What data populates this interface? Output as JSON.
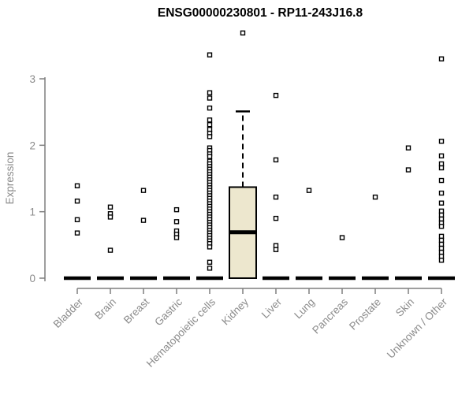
{
  "title": "ENSG00000230801 - RP11-243J16.8",
  "chart_data": {
    "type": "boxplot",
    "title": "ENSG00000230801 - RP11-243J16.8",
    "ylabel": "Expression",
    "xlabel": "",
    "ylim": [
      0,
      3.8
    ],
    "yticks": [
      0,
      1,
      2,
      3
    ],
    "grid": false,
    "legend": null,
    "categories": [
      "Bladder",
      "Brain",
      "Breast",
      "Gastric",
      "Hematopoietic cells",
      "Kidney",
      "Liver",
      "Lung",
      "Pancreas",
      "Prostate",
      "Skin",
      "Unknown / Other"
    ],
    "series": [
      {
        "category": "Bladder",
        "box": {
          "q1": 0,
          "median": 0,
          "q3": 0
        },
        "points": [
          1.39,
          1.16,
          0.88,
          0.68
        ]
      },
      {
        "category": "Brain",
        "box": {
          "q1": 0,
          "median": 0,
          "q3": 0
        },
        "points": [
          1.07,
          0.97,
          0.92,
          0.42
        ]
      },
      {
        "category": "Breast",
        "box": {
          "q1": 0,
          "median": 0,
          "q3": 0
        },
        "points": [
          1.32,
          0.87
        ]
      },
      {
        "category": "Gastric",
        "box": {
          "q1": 0,
          "median": 0,
          "q3": 0
        },
        "points": [
          1.03,
          0.85,
          0.71,
          0.66,
          0.61
        ]
      },
      {
        "category": "Hematopoietic cells",
        "box": {
          "q1": 0,
          "median": 0,
          "q3": 0
        },
        "points": [
          3.36,
          2.79,
          2.71,
          2.56,
          2.38,
          2.31,
          2.24,
          2.18,
          2.13,
          1.96,
          1.92,
          1.87,
          1.83,
          1.76,
          1.72,
          1.68,
          1.64,
          1.6,
          1.56,
          1.52,
          1.48,
          1.44,
          1.4,
          1.36,
          1.32,
          1.28,
          1.24,
          1.2,
          1.16,
          1.12,
          1.08,
          1.04,
          1.0,
          0.96,
          0.92,
          0.88,
          0.84,
          0.8,
          0.76,
          0.72,
          0.68,
          0.64,
          0.6,
          0.56,
          0.52,
          0.47,
          0.24,
          0.15
        ]
      },
      {
        "category": "Kidney",
        "box": {
          "q1": 0,
          "median": 0.69,
          "q3": 1.37,
          "whisker_high": 2.51
        },
        "points": [
          3.69
        ]
      },
      {
        "category": "Liver",
        "box": {
          "q1": 0,
          "median": 0,
          "q3": 0
        },
        "points": [
          2.75,
          1.78,
          1.22,
          0.9,
          0.49,
          0.43
        ]
      },
      {
        "category": "Lung",
        "box": {
          "q1": 0,
          "median": 0,
          "q3": 0
        },
        "points": [
          1.32
        ]
      },
      {
        "category": "Pancreas",
        "box": {
          "q1": 0,
          "median": 0,
          "q3": 0
        },
        "points": [
          0.61
        ]
      },
      {
        "category": "Prostate",
        "box": {
          "q1": 0,
          "median": 0,
          "q3": 0
        },
        "points": [
          1.22
        ]
      },
      {
        "category": "Skin",
        "box": {
          "q1": 0,
          "median": 0,
          "q3": 0
        },
        "points": [
          1.96,
          1.63
        ]
      },
      {
        "category": "Unknown / Other",
        "box": {
          "q1": 0,
          "median": 0,
          "q3": 0
        },
        "points": [
          3.3,
          2.06,
          1.84,
          1.72,
          1.66,
          1.47,
          1.28,
          1.13,
          1.01,
          0.95,
          0.89,
          0.83,
          0.78,
          0.63,
          0.57,
          0.51,
          0.45,
          0.39,
          0.33,
          0.27
        ]
      }
    ],
    "colors": {
      "box_fill": "#EDE7CE",
      "box_border": "#000000",
      "point": "#000000",
      "axis": "#7f7f7f",
      "text": "#8b8b8b",
      "title": "#000000",
      "background": "#ffffff"
    }
  }
}
